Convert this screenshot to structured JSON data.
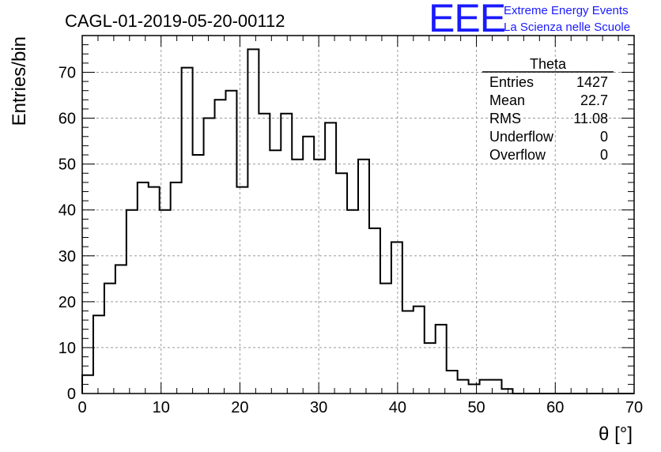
{
  "chart_data": {
    "type": "bar",
    "title": "CAGL-01-2019-05-20-00112",
    "xlabel": "θ [°]",
    "ylabel": "Entries/bin",
    "xlim": [
      0,
      70
    ],
    "ylim": [
      0,
      78
    ],
    "xticks": [
      0,
      10,
      20,
      30,
      40,
      50,
      60,
      70
    ],
    "yticks": [
      0,
      10,
      20,
      30,
      40,
      50,
      60,
      70
    ],
    "grid": true,
    "bin_width": 1.4,
    "bin_edges_start": 0,
    "values": [
      4,
      17,
      24,
      28,
      40,
      46,
      45,
      40,
      46,
      71,
      52,
      60,
      64,
      66,
      45,
      75,
      61,
      53,
      61,
      51,
      56,
      51,
      59,
      48,
      40,
      51,
      36,
      24,
      33,
      18,
      19,
      11,
      15,
      5,
      3,
      2,
      3,
      3,
      1,
      0,
      0,
      0,
      0,
      0,
      0,
      0,
      0,
      0,
      0,
      0
    ],
    "stats": {
      "name": "Theta",
      "entries_label": "Entries",
      "entries": "1427",
      "mean_label": "Mean",
      "mean": "22.7",
      "rms_label": "RMS",
      "rms": "11.08",
      "underflow_label": "Underflow",
      "underflow": "0",
      "overflow_label": "Overflow",
      "overflow": "0"
    }
  },
  "logo": {
    "mark": "EEE",
    "line1": "Extreme Energy Events",
    "line2": "La Scienza nelle Scuole"
  }
}
